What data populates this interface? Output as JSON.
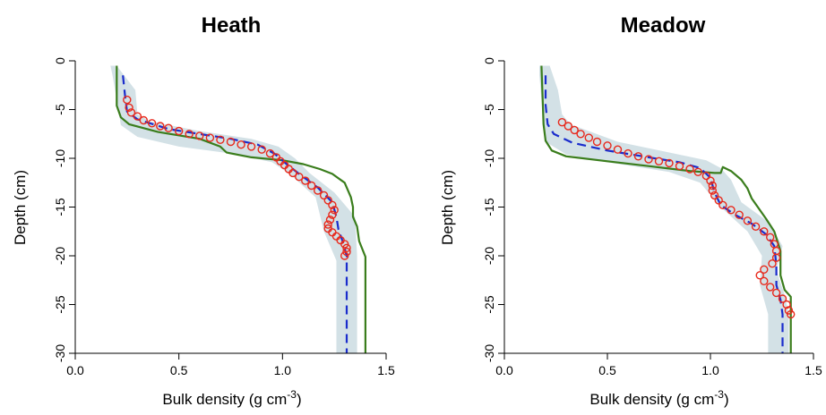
{
  "chart_data": [
    {
      "type": "line",
      "title": "Heath",
      "xlabel": "Bulk density (g cm",
      "xlabel_sup": "-3",
      "xlabel_end": ")",
      "ylabel": "Depth (cm)",
      "xlim": [
        0.0,
        1.5
      ],
      "ylim": [
        -30,
        0
      ],
      "xticks": [
        "0.0",
        "0.5",
        "1.0",
        "1.5"
      ],
      "yticks": [
        "0",
        "-5",
        "-10",
        "-15",
        "-20",
        "-25",
        "-30"
      ],
      "colors": {
        "band": "#d3e1e6",
        "green": "#3a7d1c",
        "blue": "#1a2ccc",
        "red": "#e8291c"
      },
      "band": [
        [
          0.17,
          -0.5
        ],
        [
          0.2,
          -0.5
        ],
        [
          0.29,
          -3
        ],
        [
          0.3,
          -5.5
        ],
        [
          0.36,
          -6.2
        ],
        [
          0.6,
          -7.2
        ],
        [
          0.85,
          -8
        ],
        [
          0.98,
          -8.8
        ],
        [
          1.06,
          -10
        ],
        [
          1.13,
          -11.5
        ],
        [
          1.25,
          -13.5
        ],
        [
          1.35,
          -16
        ],
        [
          1.36,
          -20
        ],
        [
          1.36,
          -30
        ],
        [
          1.26,
          -30
        ],
        [
          1.26,
          -20.5
        ],
        [
          1.2,
          -17.5
        ],
        [
          1.16,
          -14
        ],
        [
          1.04,
          -11.7
        ],
        [
          0.95,
          -10.4
        ],
        [
          0.75,
          -9.5
        ],
        [
          0.5,
          -8.8
        ],
        [
          0.3,
          -7.8
        ],
        [
          0.22,
          -6.6
        ],
        [
          0.2,
          -4
        ],
        [
          0.18,
          -1.5
        ]
      ],
      "green": [
        [
          0.2,
          -0.5
        ],
        [
          0.2,
          -4.6
        ],
        [
          0.22,
          -5.8
        ],
        [
          0.26,
          -6.5
        ],
        [
          0.4,
          -7.3
        ],
        [
          0.6,
          -8
        ],
        [
          0.7,
          -8.8
        ],
        [
          0.73,
          -9.4
        ],
        [
          0.85,
          -9.9
        ],
        [
          1.0,
          -10.2
        ],
        [
          1.1,
          -10.6
        ],
        [
          1.18,
          -11.1
        ],
        [
          1.24,
          -11.6
        ],
        [
          1.3,
          -12.5
        ],
        [
          1.33,
          -14
        ],
        [
          1.34,
          -15
        ],
        [
          1.34,
          -16
        ],
        [
          1.36,
          -17
        ],
        [
          1.37,
          -18.5
        ],
        [
          1.4,
          -20.1
        ],
        [
          1.4,
          -30
        ]
      ],
      "blue": [
        [
          0.23,
          -1.5
        ],
        [
          0.24,
          -3.5
        ],
        [
          0.25,
          -5.2
        ],
        [
          0.3,
          -6
        ],
        [
          0.45,
          -7
        ],
        [
          0.6,
          -7.5
        ],
        [
          0.75,
          -8
        ],
        [
          0.88,
          -8.6
        ],
        [
          0.96,
          -9.5
        ],
        [
          1.02,
          -10.6
        ],
        [
          1.08,
          -11.6
        ],
        [
          1.17,
          -13
        ],
        [
          1.24,
          -14.5
        ],
        [
          1.26,
          -16
        ],
        [
          1.27,
          -17.3
        ],
        [
          1.29,
          -18.5
        ],
        [
          1.31,
          -20
        ],
        [
          1.31,
          -30
        ]
      ],
      "red": [
        [
          0.25,
          -4
        ],
        [
          0.26,
          -4.8
        ],
        [
          0.27,
          -5.3
        ],
        [
          0.3,
          -5.7
        ],
        [
          0.33,
          -6.1
        ],
        [
          0.37,
          -6.4
        ],
        [
          0.41,
          -6.7
        ],
        [
          0.45,
          -6.9
        ],
        [
          0.5,
          -7.2
        ],
        [
          0.55,
          -7.5
        ],
        [
          0.6,
          -7.7
        ],
        [
          0.65,
          -7.9
        ],
        [
          0.7,
          -8.1
        ],
        [
          0.75,
          -8.3
        ],
        [
          0.8,
          -8.6
        ],
        [
          0.85,
          -8.8
        ],
        [
          0.9,
          -9.1
        ],
        [
          0.94,
          -9.5
        ],
        [
          0.97,
          -9.9
        ],
        [
          0.99,
          -10.3
        ],
        [
          1.01,
          -10.7
        ],
        [
          1.03,
          -11.1
        ],
        [
          1.05,
          -11.5
        ],
        [
          1.08,
          -11.9
        ],
        [
          1.11,
          -12.3
        ],
        [
          1.14,
          -12.8
        ],
        [
          1.17,
          -13.3
        ],
        [
          1.2,
          -13.8
        ],
        [
          1.22,
          -14.3
        ],
        [
          1.24,
          -14.8
        ],
        [
          1.25,
          -15.3
        ],
        [
          1.24,
          -15.8
        ],
        [
          1.23,
          -16.3
        ],
        [
          1.22,
          -16.8
        ],
        [
          1.22,
          -17.2
        ],
        [
          1.24,
          -17.6
        ],
        [
          1.26,
          -18
        ],
        [
          1.28,
          -18.4
        ],
        [
          1.3,
          -18.8
        ],
        [
          1.31,
          -19.2
        ],
        [
          1.31,
          -19.6
        ],
        [
          1.3,
          -20
        ]
      ]
    },
    {
      "type": "line",
      "title": "Meadow",
      "xlabel": "Bulk density (g cm",
      "xlabel_sup": "-3",
      "xlabel_end": ")",
      "ylabel": "Depth (cm)",
      "xlim": [
        0.0,
        1.5
      ],
      "ylim": [
        -30,
        0
      ],
      "xticks": [
        "0.0",
        "0.5",
        "1.0",
        "1.5"
      ],
      "yticks": [
        "0",
        "-5",
        "-10",
        "-15",
        "-20",
        "-25",
        "-30"
      ],
      "colors": {
        "band": "#d3e1e6",
        "green": "#3a7d1c",
        "blue": "#1a2ccc",
        "red": "#e8291c"
      },
      "band": [
        [
          0.17,
          -0.5
        ],
        [
          0.22,
          -0.5
        ],
        [
          0.26,
          -3
        ],
        [
          0.28,
          -5.5
        ],
        [
          0.32,
          -6.5
        ],
        [
          0.55,
          -8.3
        ],
        [
          0.8,
          -9.4
        ],
        [
          0.98,
          -10.2
        ],
        [
          1.05,
          -11
        ],
        [
          1.1,
          -12.2
        ],
        [
          1.15,
          -14.5
        ],
        [
          1.28,
          -16.5
        ],
        [
          1.35,
          -19
        ],
        [
          1.32,
          -21.5
        ],
        [
          1.36,
          -24
        ],
        [
          1.38,
          -26
        ],
        [
          1.38,
          -30
        ],
        [
          1.28,
          -30
        ],
        [
          1.28,
          -26
        ],
        [
          1.24,
          -23
        ],
        [
          1.25,
          -20
        ],
        [
          1.18,
          -17.5
        ],
        [
          1.05,
          -15
        ],
        [
          0.95,
          -12.5
        ],
        [
          0.8,
          -11.4
        ],
        [
          0.5,
          -10.4
        ],
        [
          0.3,
          -9.6
        ],
        [
          0.2,
          -8.3
        ],
        [
          0.18,
          -4
        ],
        [
          0.17,
          -1.5
        ]
      ],
      "green": [
        [
          0.18,
          -0.5
        ],
        [
          0.19,
          -6.5
        ],
        [
          0.2,
          -8.2
        ],
        [
          0.23,
          -9.2
        ],
        [
          0.3,
          -9.8
        ],
        [
          0.5,
          -10.3
        ],
        [
          0.7,
          -10.8
        ],
        [
          0.9,
          -11.3
        ],
        [
          1.02,
          -11.5
        ],
        [
          1.05,
          -11.5
        ],
        [
          1.06,
          -10.9
        ],
        [
          1.1,
          -11.3
        ],
        [
          1.15,
          -12.2
        ],
        [
          1.18,
          -13.1
        ],
        [
          1.2,
          -14.1
        ],
        [
          1.27,
          -16.2
        ],
        [
          1.31,
          -17.5
        ],
        [
          1.34,
          -19.5
        ],
        [
          1.34,
          -22
        ],
        [
          1.36,
          -23.5
        ],
        [
          1.39,
          -24.2
        ],
        [
          1.39,
          -30
        ]
      ],
      "blue": [
        [
          0.2,
          -1.5
        ],
        [
          0.2,
          -4.5
        ],
        [
          0.21,
          -6.5
        ],
        [
          0.24,
          -7.5
        ],
        [
          0.33,
          -8.4
        ],
        [
          0.5,
          -9.2
        ],
        [
          0.7,
          -9.9
        ],
        [
          0.85,
          -10.4
        ],
        [
          0.95,
          -11
        ],
        [
          1.0,
          -12
        ],
        [
          1.02,
          -13.5
        ],
        [
          1.05,
          -14.8
        ],
        [
          1.12,
          -15.8
        ],
        [
          1.2,
          -16.7
        ],
        [
          1.27,
          -17.8
        ],
        [
          1.31,
          -19
        ],
        [
          1.32,
          -21
        ],
        [
          1.32,
          -23
        ],
        [
          1.34,
          -24.5
        ],
        [
          1.35,
          -26
        ],
        [
          1.35,
          -30
        ]
      ],
      "red": [
        [
          0.28,
          -6.3
        ],
        [
          0.31,
          -6.7
        ],
        [
          0.34,
          -7.1
        ],
        [
          0.37,
          -7.5
        ],
        [
          0.41,
          -7.9
        ],
        [
          0.45,
          -8.3
        ],
        [
          0.5,
          -8.7
        ],
        [
          0.55,
          -9.1
        ],
        [
          0.6,
          -9.5
        ],
        [
          0.65,
          -9.8
        ],
        [
          0.7,
          -10.1
        ],
        [
          0.75,
          -10.3
        ],
        [
          0.8,
          -10.5
        ],
        [
          0.85,
          -10.8
        ],
        [
          0.9,
          -11.1
        ],
        [
          0.94,
          -11.4
        ],
        [
          0.98,
          -11.8
        ],
        [
          1.0,
          -12.3
        ],
        [
          1.01,
          -12.8
        ],
        [
          1.01,
          -13.3
        ],
        [
          1.02,
          -13.8
        ],
        [
          1.04,
          -14.3
        ],
        [
          1.06,
          -14.8
        ],
        [
          1.1,
          -15.3
        ],
        [
          1.14,
          -15.8
        ],
        [
          1.18,
          -16.4
        ],
        [
          1.22,
          -17
        ],
        [
          1.26,
          -17.5
        ],
        [
          1.29,
          -18.1
        ],
        [
          1.31,
          -18.8
        ],
        [
          1.32,
          -19.5
        ],
        [
          1.32,
          -20.2
        ],
        [
          1.3,
          -20.8
        ],
        [
          1.26,
          -21.4
        ],
        [
          1.24,
          -22
        ],
        [
          1.26,
          -22.6
        ],
        [
          1.29,
          -23.2
        ],
        [
          1.32,
          -23.8
        ],
        [
          1.35,
          -24.4
        ],
        [
          1.37,
          -25
        ],
        [
          1.38,
          -25.6
        ],
        [
          1.39,
          -26
        ]
      ]
    }
  ]
}
